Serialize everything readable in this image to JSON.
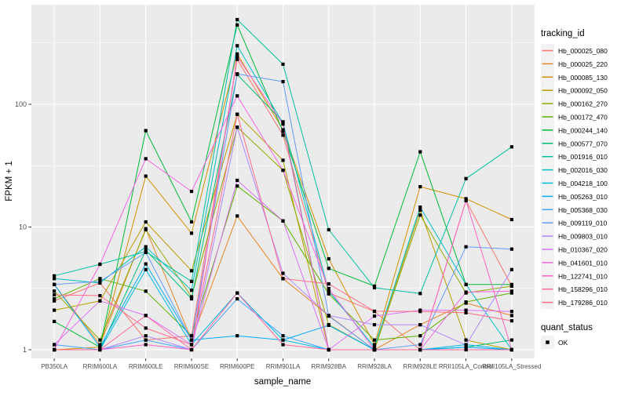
{
  "chart_data": {
    "type": "line",
    "title": "",
    "xlabel": "sample_name",
    "ylabel": "FPKM + 1",
    "y_scale": "log10",
    "y_ticks": [
      1,
      10,
      100
    ],
    "y_tick_labels": [
      "1",
      "10",
      "100"
    ],
    "y_minor_breaks_log10": [
      0.5,
      1.5,
      2.5
    ],
    "ylim": [
      0.87,
      660
    ],
    "grid": true,
    "panel_bg": "#EBEBEB",
    "grid_color": "#FFFFFF",
    "axis_text_color": "#4D4D4D",
    "point_color": "#000000",
    "point_shape": "square",
    "legend_title": "tracking_id",
    "legend_key_bg": "#F2F2F2",
    "legend2_title": "quant_status",
    "legend2_items": [
      {
        "label": "OK",
        "marker": "black-square"
      }
    ],
    "x_categories": [
      "PB350LA",
      "RRIM600LA",
      "RRIM600LE",
      "RRIM600SE",
      "RRIM600PE",
      "RRIM901LA",
      "RRIM928BA",
      "RRIM928LA",
      "RRIM928LE",
      "RRII105LA_Control",
      "RRII105LA_Stressed"
    ],
    "series": [
      {
        "name": "Hb_000025_080",
        "color": "#F8766D",
        "values": [
          2.5,
          3.5,
          1.2,
          1.3,
          232,
          56,
          2.9,
          2.05,
          1.0,
          16.4,
          3.3
        ]
      },
      {
        "name": "Hb_000025_220",
        "color": "#E88526",
        "values": [
          3.4,
          1.1,
          9.7,
          1.2,
          12.3,
          3.8,
          1.9,
          1.0,
          1.6,
          2.4,
          1.9
        ]
      },
      {
        "name": "Hb_000085_130",
        "color": "#D39200",
        "values": [
          1.0,
          1.05,
          26,
          8.9,
          257,
          62,
          5.5,
          1.1,
          21.3,
          17,
          11.5
        ]
      },
      {
        "name": "Hb_000092_050",
        "color": "#B79F00",
        "values": [
          2.1,
          2.5,
          11,
          4.4,
          83,
          35,
          1.0,
          1.0,
          13.7,
          1.2,
          1.0
        ]
      },
      {
        "name": "Hb_000162_270",
        "color": "#93AA00",
        "values": [
          3.0,
          1.2,
          9.5,
          2.7,
          65,
          29,
          1.6,
          1.0,
          12.5,
          2.9,
          3.3
        ]
      },
      {
        "name": "Hb_000172_470",
        "color": "#5EB300",
        "values": [
          2.6,
          3.8,
          3.0,
          1.3,
          21.6,
          11.2,
          2.85,
          1.2,
          1.3,
          2.45,
          2.9
        ]
      },
      {
        "name": "Hb_000244_140",
        "color": "#00BA38",
        "values": [
          1.7,
          1.05,
          61,
          11,
          443,
          60,
          4.6,
          3.3,
          41,
          3.4,
          3.4
        ]
      },
      {
        "name": "Hb_000577_070",
        "color": "#00BF74",
        "values": [
          1.0,
          1.0,
          6.5,
          2.6,
          175,
          72,
          1.0,
          1.0,
          1.0,
          1.05,
          1.2
        ]
      },
      {
        "name": "Hb_001916_010",
        "color": "#00C19F",
        "values": [
          4.0,
          4.97,
          6.3,
          3.6,
          490,
          212,
          9.5,
          3.2,
          2.87,
          24.8,
          45
        ]
      },
      {
        "name": "Hb_002016_030",
        "color": "#00BFC4",
        "values": [
          3.8,
          3.5,
          6.9,
          3.05,
          300,
          70,
          3.0,
          1.05,
          14.5,
          3.4,
          1.0
        ]
      },
      {
        "name": "Hb_004218_100",
        "color": "#00B9E3",
        "values": [
          1.0,
          1.0,
          4.5,
          1.1,
          2.9,
          1.2,
          1.0,
          1.0,
          1.0,
          1.1,
          1.0
        ]
      },
      {
        "name": "Hb_005263_010",
        "color": "#00ADFA",
        "values": [
          3.4,
          1.05,
          5.0,
          1.2,
          1.3,
          1.2,
          1.58,
          1.0,
          1.0,
          1.05,
          1.0
        ]
      },
      {
        "name": "Hb_005368_030",
        "color": "#3FA6FF",
        "values": [
          1.1,
          1.0,
          1.2,
          1.0,
          2.6,
          1.3,
          1.0,
          1.0,
          1.0,
          1.0,
          1.0
        ]
      },
      {
        "name": "Hb_009119_010",
        "color": "#619CFF",
        "values": [
          3.4,
          3.6,
          6.2,
          1.2,
          177,
          153,
          1.88,
          1.0,
          1.1,
          6.9,
          6.6
        ]
      },
      {
        "name": "Hb_009803_010",
        "color": "#AE87FF",
        "values": [
          1.0,
          1.0,
          1.3,
          1.0,
          65,
          4.2,
          1.9,
          1.6,
          1.6,
          1.09,
          4.5
        ]
      },
      {
        "name": "Hb_010367_020",
        "color": "#DB72FB",
        "values": [
          1.1,
          2.5,
          1.9,
          1.1,
          24,
          11.2,
          1.0,
          1.88,
          2.1,
          2.1,
          2.05
        ]
      },
      {
        "name": "Hb_041601_010",
        "color": "#F564E3",
        "values": [
          1.0,
          4.97,
          36,
          19.5,
          117,
          29,
          3.15,
          1.0,
          1.0,
          2.95,
          3.0
        ]
      },
      {
        "name": "Hb_122741_010",
        "color": "#FF61C3",
        "values": [
          1.0,
          1.0,
          1.1,
          1.0,
          245,
          69,
          1.0,
          1.0,
          1.0,
          16.4,
          1.0
        ]
      },
      {
        "name": "Hb_158296_010",
        "color": "#FF689E",
        "values": [
          1.0,
          1.0,
          1.9,
          1.0,
          2.9,
          1.1,
          1.0,
          1.0,
          1.0,
          1.0,
          1.0
        ]
      },
      {
        "name": "Hb_179286_010",
        "color": "#FF6B8B",
        "values": [
          2.8,
          2.76,
          1.5,
          1.1,
          83,
          3.8,
          3.44,
          2.06,
          2.05,
          2.0,
          1.72
        ]
      }
    ]
  }
}
